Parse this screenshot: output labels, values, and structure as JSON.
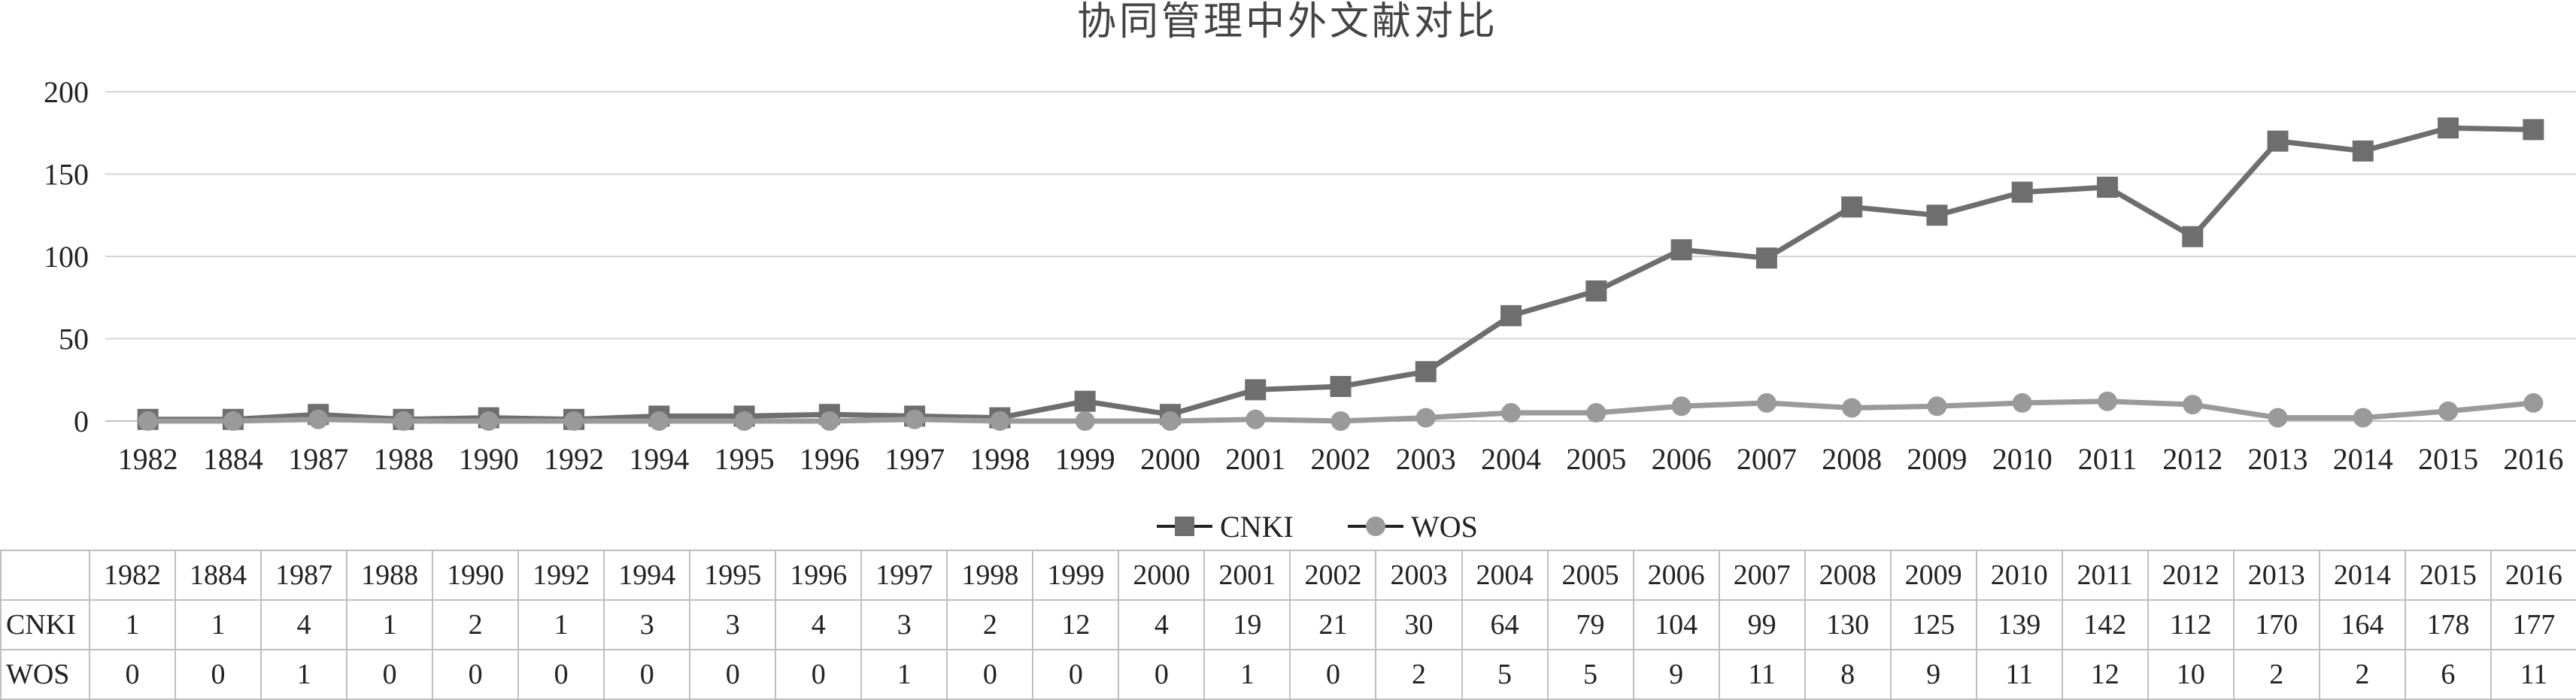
{
  "chart_data": {
    "type": "line",
    "title": "协同管理中外文献对比",
    "categories": [
      "1982",
      "1884",
      "1987",
      "1988",
      "1990",
      "1992",
      "1994",
      "1995",
      "1996",
      "1997",
      "1998",
      "1999",
      "2000",
      "2001",
      "2002",
      "2003",
      "2004",
      "2005",
      "2006",
      "2007",
      "2008",
      "2009",
      "2010",
      "2011",
      "2012",
      "2013",
      "2014",
      "2015",
      "2016"
    ],
    "series": [
      {
        "name": "CNKI",
        "marker": "square",
        "color": "#6e6e6e",
        "values": [
          1,
          1,
          4,
          1,
          2,
          1,
          3,
          3,
          4,
          3,
          2,
          12,
          4,
          19,
          21,
          30,
          64,
          79,
          104,
          99,
          130,
          125,
          139,
          142,
          112,
          170,
          164,
          178,
          177
        ]
      },
      {
        "name": "WOS",
        "marker": "circle",
        "color": "#9a9a9a",
        "values": [
          0,
          0,
          1,
          0,
          0,
          0,
          0,
          0,
          0,
          1,
          0,
          0,
          0,
          1,
          0,
          2,
          5,
          5,
          9,
          11,
          8,
          9,
          11,
          12,
          10,
          2,
          2,
          6,
          11
        ]
      }
    ],
    "ylim": [
      0,
      200
    ],
    "yticks": [
      0,
      50,
      100,
      150,
      200
    ],
    "grid": true,
    "legend": "bottom",
    "data_table": true
  }
}
